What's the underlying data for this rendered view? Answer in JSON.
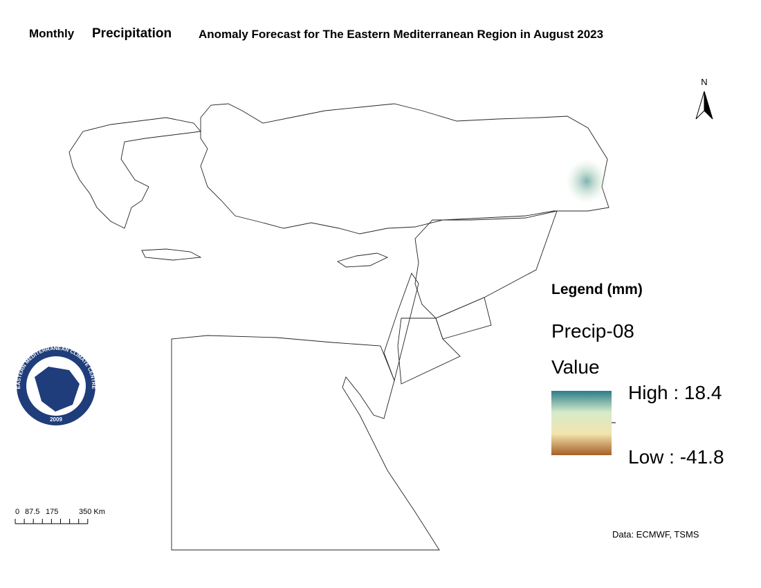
{
  "title": [
    "Monthly",
    "Precipitation",
    "Anomaly Forecast for The Eastern Mediterranean Region in August 2023"
  ],
  "north_arrow": "N",
  "legend": {
    "heading": "Legend (mm)",
    "layer": "Precip-08",
    "field": "Value",
    "high": "High : 18.4",
    "low": "Low : -41.8",
    "gradient": [
      "#2b7c8a",
      "#d6ebca",
      "#f2e4ae",
      "#a65f28"
    ]
  },
  "logo": {
    "name": "EASTERN MEDITERRANEAN CLIMATE CENTRE",
    "year": "2009"
  },
  "scale_bar": {
    "labels": [
      "0",
      "87.5",
      "175",
      "350 Km"
    ]
  },
  "credit": "Data: ECMWF, TSMS"
}
